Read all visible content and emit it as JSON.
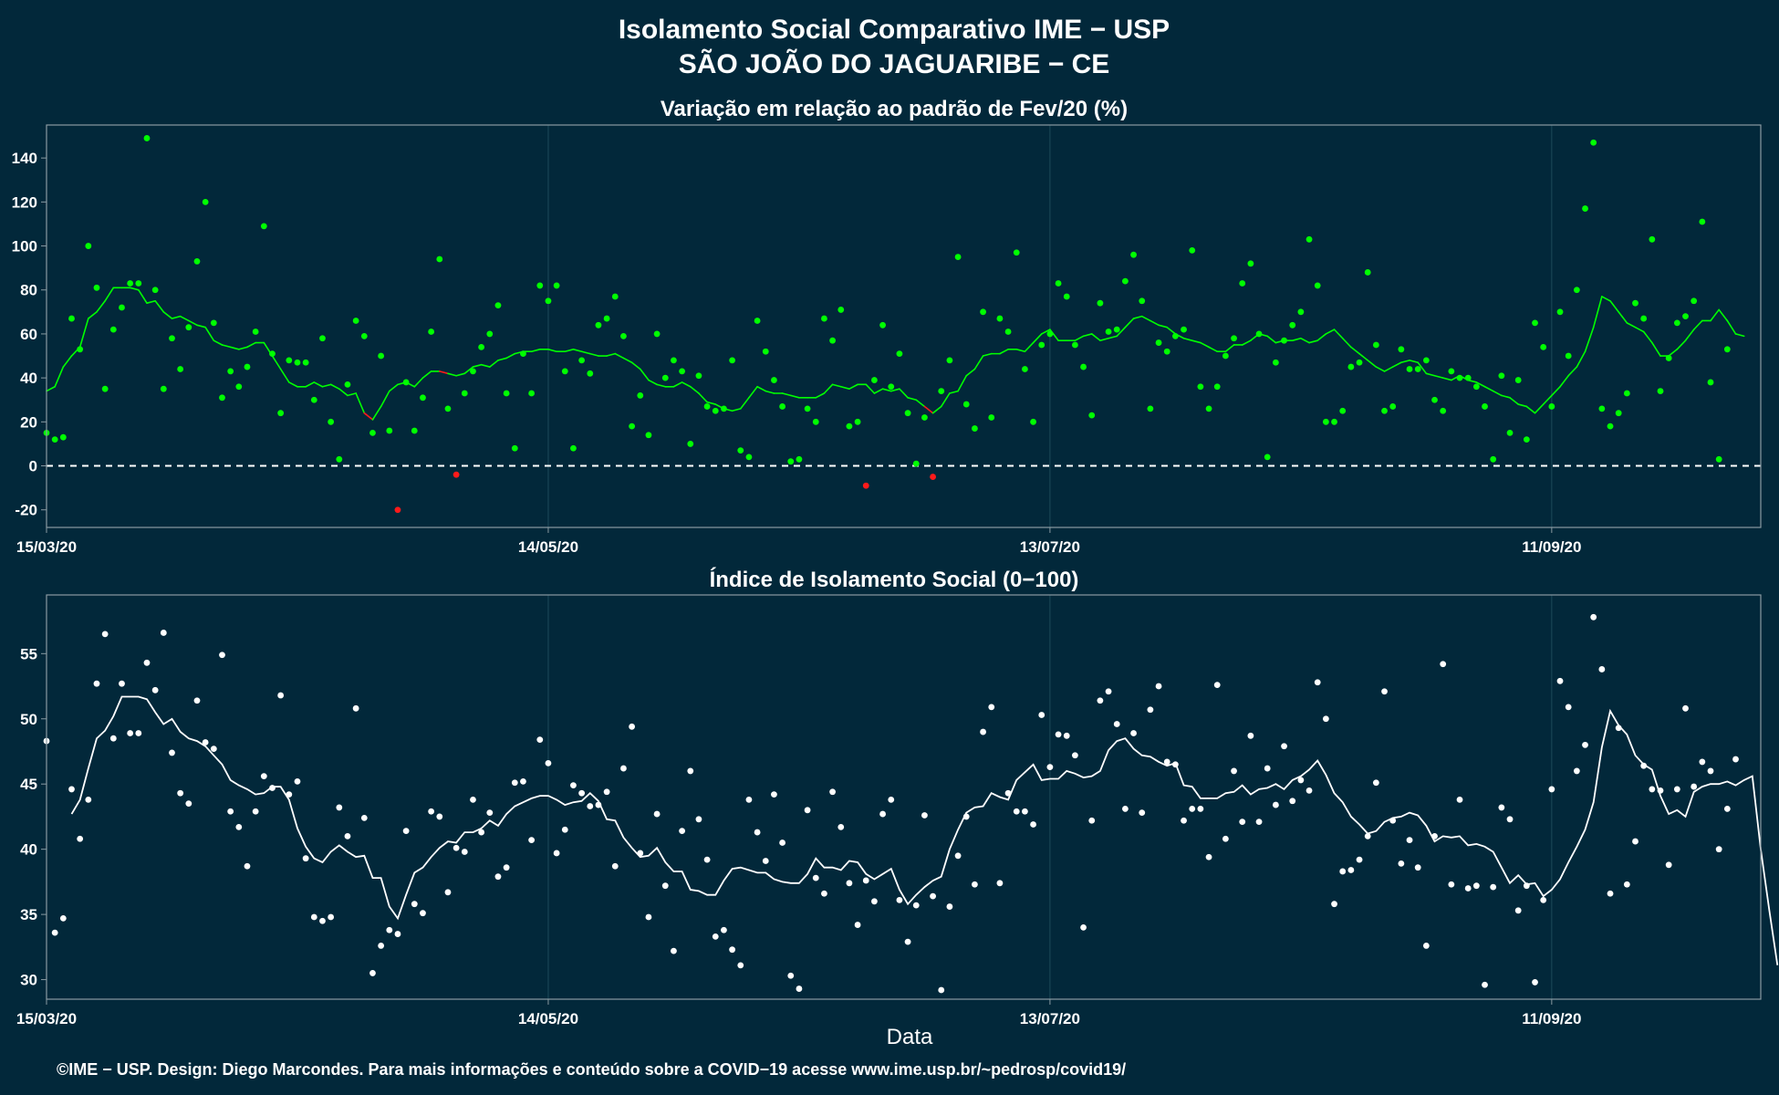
{
  "header": {
    "title_line1": "Isolamento Social Comparativo IME − USP",
    "title_line2": "SÃO JOÃO DO JAGUARIBE − CE"
  },
  "xlabel": "Data",
  "footer": "©IME − USP. Design: Diego Marcondes. Para mais informações e conteúdo sobre a COVID−19 acesse www.ime.usp.br/~pedrosp/covid19/",
  "colors": {
    "background": "#02283a",
    "panel_border": "#8a9aa2",
    "grid": "#1d4a5a",
    "positive": "#00ff00",
    "negative": "#ff1a1a",
    "index": "#ffffff"
  },
  "chart_data": [
    {
      "type": "scatter",
      "title": "Variação em relação ao padrão de Fev/20 (%)",
      "xlabel": "",
      "ylabel": "",
      "x_start": "2020-03-15",
      "x_end": "2020-10-05",
      "xlim": [
        "2020-03-15",
        "2020-10-06"
      ],
      "ylim": [
        -28,
        155
      ],
      "yticks": [
        -20,
        0,
        20,
        40,
        60,
        80,
        100,
        120,
        140
      ],
      "xticks": [
        "15/03/20",
        "14/05/20",
        "13/07/20",
        "11/09/20"
      ],
      "reference_line": 0,
      "series": [
        {
          "points": [
            15,
            12,
            13,
            67,
            53,
            100,
            81,
            35,
            62,
            72,
            83,
            83,
            149,
            80,
            35,
            58,
            44,
            63,
            93,
            120,
            65,
            31,
            43,
            36,
            45,
            61,
            109,
            51,
            24,
            48,
            47,
            47,
            30,
            58,
            20,
            3,
            37,
            66,
            59,
            15,
            50,
            16,
            -20,
            38,
            16,
            31,
            61,
            94,
            26,
            -4,
            33,
            43,
            54,
            60,
            73,
            33,
            8,
            51,
            33,
            82,
            75,
            82,
            43,
            8,
            48,
            42,
            64,
            67,
            77,
            59,
            18,
            32,
            14,
            60,
            40,
            48,
            43,
            10,
            41,
            27,
            25,
            26,
            48,
            7,
            4,
            66,
            52,
            39,
            27,
            2,
            3,
            26,
            20,
            67,
            57,
            71,
            18,
            20,
            -9,
            39,
            64,
            36,
            51,
            24,
            1,
            22,
            -5,
            34,
            48,
            95,
            28,
            17,
            70,
            22,
            67,
            61,
            97,
            44,
            20,
            55,
            60,
            83,
            77,
            55,
            45,
            23,
            74,
            61,
            62,
            84,
            96,
            75,
            26,
            56,
            52,
            59,
            62,
            98,
            36,
            26,
            36,
            50,
            58,
            83,
            92,
            60,
            4,
            47,
            57,
            64,
            70,
            103,
            82,
            20,
            20,
            25,
            45,
            47,
            88,
            55,
            25,
            27,
            53,
            44,
            44,
            48,
            30,
            25,
            43,
            40,
            40,
            36,
            27,
            3,
            41,
            15,
            39,
            12,
            65,
            54,
            27,
            70,
            50,
            80,
            117,
            147,
            26,
            18,
            24,
            33,
            74,
            67,
            103,
            34,
            49,
            65,
            68,
            75,
            111,
            38,
            3,
            53
          ]
        },
        {
          "name": "7-day mean",
          "values": [
            34,
            36,
            45,
            50,
            54,
            67,
            70,
            75,
            81,
            81,
            81,
            80,
            74,
            75,
            70,
            67,
            68,
            66,
            64,
            63,
            57,
            55,
            54,
            53,
            54,
            56,
            56,
            50,
            44,
            38,
            36,
            36,
            38,
            36,
            37,
            35,
            32,
            33,
            24,
            21,
            27,
            34,
            37,
            38,
            36,
            40,
            43,
            43,
            42,
            41,
            42,
            45,
            46,
            45,
            48,
            49,
            51,
            52,
            52,
            53,
            53,
            52,
            52,
            53,
            52,
            51,
            50,
            50,
            51,
            49,
            47,
            44,
            39,
            37,
            36,
            36,
            38,
            36,
            33,
            29,
            28,
            26,
            25,
            26,
            31,
            36,
            34,
            33,
            33,
            32,
            31,
            31,
            31,
            33,
            37,
            36,
            35,
            37,
            37,
            33,
            35,
            34,
            35,
            31,
            30,
            27,
            24,
            27,
            33,
            34,
            41,
            44,
            50,
            51,
            51,
            53,
            53,
            52,
            56,
            60,
            62,
            57,
            57,
            57,
            59,
            60,
            57,
            58,
            59,
            63,
            67,
            68,
            66,
            64,
            63,
            60,
            58,
            57,
            56,
            54,
            52,
            52,
            55,
            55,
            57,
            60,
            59,
            56,
            57,
            57,
            58,
            56,
            57,
            60,
            62,
            58,
            54,
            51,
            48,
            45,
            43,
            45,
            47,
            48,
            47,
            42,
            41,
            40,
            39,
            41,
            39,
            38,
            36,
            34,
            32,
            31,
            28,
            27,
            24,
            28,
            32,
            36,
            41,
            45,
            52,
            63,
            77,
            75,
            70,
            65,
            63,
            61,
            56,
            50,
            50,
            53,
            57,
            62,
            66,
            66,
            71,
            66,
            60,
            59
          ]
        }
      ]
    },
    {
      "type": "scatter",
      "title": "Índice de Isolamento Social (0−100)",
      "xlabel": "Data",
      "ylabel": "",
      "x_start": "2020-03-15",
      "x_end": "2020-10-05",
      "xlim": [
        "2020-03-15",
        "2020-10-06"
      ],
      "ylim": [
        28.5,
        59.5
      ],
      "yticks": [
        30,
        35,
        40,
        45,
        50,
        55
      ],
      "xticks": [
        "15/03/20",
        "14/05/20",
        "13/07/20",
        "11/09/20"
      ],
      "series": [
        {
          "values": [
            48.3,
            33.6,
            34.7,
            44.6,
            40.8,
            43.8,
            52.7,
            56.5,
            48.5,
            52.7,
            48.9,
            48.9,
            54.3,
            52.2,
            56.6,
            47.4,
            44.3,
            43.5,
            51.4,
            48.2,
            47.7,
            54.9,
            42.9,
            41.7,
            38.7,
            42.9,
            45.6,
            44.7,
            51.8,
            44.2,
            45.2,
            39.3,
            34.8,
            34.5,
            34.8,
            43.2,
            41.0,
            50.8,
            42.4,
            30.5,
            32.6,
            33.8,
            33.5,
            41.4,
            35.8,
            35.1,
            42.9,
            42.5,
            36.7,
            40.1,
            39.8,
            43.8,
            41.3,
            42.8,
            37.9,
            38.6,
            45.1,
            45.2,
            40.7,
            48.4,
            46.6,
            39.7,
            41.5,
            44.9,
            44.3,
            43.3,
            43.4,
            44.4,
            38.7,
            46.2,
            49.4,
            39.7,
            34.8,
            42.7,
            37.2,
            32.2,
            41.4,
            46.0,
            42.3,
            39.2,
            33.3,
            33.8,
            32.3,
            31.1,
            43.8,
            41.3,
            39.1,
            44.2,
            40.5,
            30.3,
            29.3,
            43.0,
            37.8,
            36.6,
            44.4,
            41.7,
            37.4,
            34.2,
            37.6,
            36.0,
            42.7,
            43.8,
            36.1,
            32.9,
            35.7,
            42.6,
            36.4,
            29.2,
            35.6,
            39.5,
            42.5,
            37.3,
            49.0,
            50.9,
            37.4,
            44.3,
            42.9,
            42.9,
            41.9,
            50.3,
            46.3,
            48.8,
            48.7,
            47.2,
            34.0,
            42.2,
            51.4,
            52.1,
            49.6,
            43.1,
            48.9,
            42.8,
            50.7,
            52.5,
            46.7,
            46.5,
            42.2,
            43.1,
            43.1,
            39.4,
            52.6,
            40.8,
            46.0,
            42.1,
            48.7,
            42.1,
            46.2,
            43.4,
            47.9,
            43.7,
            45.3,
            44.5,
            52.8,
            50.0,
            35.8,
            38.3,
            38.4,
            39.2,
            41.0,
            45.1,
            52.1,
            42.2,
            38.9,
            40.7,
            38.6,
            32.6,
            41.0,
            54.2,
            37.3,
            43.8,
            37.0,
            37.2,
            29.6,
            37.1,
            43.2,
            42.3,
            35.3,
            37.2,
            29.8,
            36.1,
            44.6,
            52.9,
            50.9,
            46.0,
            48.0,
            57.8,
            53.8,
            36.6,
            49.3,
            37.3,
            40.6,
            46.4,
            44.6,
            44.5,
            38.8,
            44.6,
            50.8,
            44.8,
            46.7,
            46.0,
            40.0,
            43.1,
            46.9
          ]
        },
        {
          "name": "7-day mean",
          "x_offset": 3,
          "values": [
            42.7,
            43.8,
            46.2,
            48.5,
            49.1,
            50.2,
            51.7,
            51.7,
            51.7,
            51.5,
            50.5,
            49.6,
            50.0,
            49.0,
            48.5,
            48.3,
            47.9,
            47.2,
            46.5,
            45.3,
            44.9,
            44.6,
            44.2,
            44.3,
            44.8,
            44.8,
            43.8,
            41.6,
            40.2,
            39.3,
            39.0,
            39.8,
            40.3,
            39.8,
            39.4,
            39.5,
            37.8,
            37.8,
            35.6,
            34.7,
            36.5,
            38.2,
            38.6,
            39.4,
            40.1,
            40.6,
            40.5,
            41.3,
            41.3,
            41.6,
            42.2,
            41.8,
            42.7,
            43.3,
            43.6,
            43.9,
            44.1,
            44.1,
            43.8,
            43.4,
            43.6,
            43.7,
            44.3,
            43.7,
            42.3,
            42.2,
            40.9,
            40.1,
            39.4,
            39.5,
            40.1,
            39.0,
            38.3,
            38.3,
            36.9,
            36.8,
            36.5,
            36.5,
            37.6,
            38.5,
            38.6,
            38.4,
            38.2,
            38.2,
            37.7,
            37.5,
            37.4,
            37.4,
            38.1,
            39.3,
            38.6,
            38.6,
            38.4,
            39.1,
            39.0,
            38.1,
            37.7,
            38.1,
            38.5,
            36.9,
            35.8,
            36.5,
            37.1,
            37.6,
            37.9,
            40.0,
            41.5,
            42.8,
            43.2,
            43.3,
            44.3,
            44.0,
            43.8,
            45.3,
            45.9,
            46.5,
            45.3,
            45.4,
            45.4,
            46.0,
            45.8,
            45.5,
            45.6,
            46.0,
            47.6,
            48.3,
            48.5,
            47.7,
            47.2,
            47.1,
            46.7,
            46.4,
            46.6,
            44.9,
            44.8,
            43.9,
            43.9,
            43.9,
            44.3,
            44.4,
            44.9,
            44.2,
            44.6,
            44.7,
            45.0,
            44.6,
            45.3,
            45.6,
            46.1,
            46.8,
            45.7,
            44.3,
            43.6,
            42.5,
            41.9,
            41.2,
            41.4,
            42.1,
            42.4,
            42.5,
            42.8,
            42.6,
            41.8,
            40.6,
            41.0,
            40.9,
            41.0,
            40.3,
            40.4,
            40.2,
            39.8,
            38.6,
            37.4,
            38.0,
            37.3,
            37.4,
            36.4,
            36.9,
            37.7,
            39.0,
            40.2,
            41.5,
            43.6,
            47.8,
            50.6,
            49.5,
            48.8,
            47.2,
            46.5,
            46.1,
            44.1,
            42.7,
            43.0,
            42.5,
            44.4,
            44.8,
            45.0,
            45.0,
            45.2,
            44.9,
            45.3,
            45.6,
            40.0,
            35.4,
            31.1
          ]
        }
      ]
    }
  ]
}
